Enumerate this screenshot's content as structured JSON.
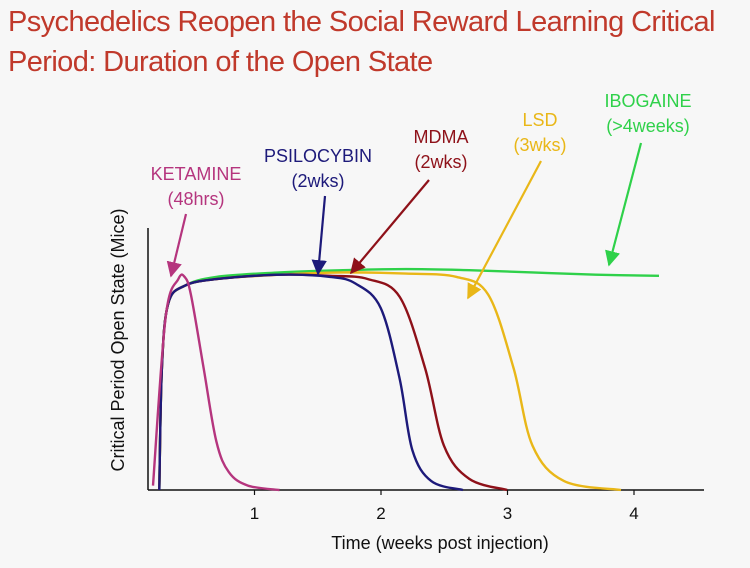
{
  "slide": {
    "title_line1": "Psychedelics Reopen the Social Reward Learning Critical",
    "title_line2": "Period: Duration of the Open State",
    "title_color": "#c0392b"
  },
  "chart_data": {
    "type": "line",
    "title": "Psychedelics Reopen the Social Reward Learning Critical Period: Duration of the Open State",
    "xlabel": "Time (weeks post injection)",
    "ylabel": "Critical Period Open State (Mice)",
    "xlim": [
      -0.7,
      4.7
    ],
    "ylim": [
      0,
      1
    ],
    "x_ticks": [
      1,
      2,
      3,
      4
    ],
    "y_ticks_shown": false,
    "grid": false,
    "series": [
      {
        "name": "KETAMINE",
        "duration_label": "(48hrs)",
        "color": "#b5357e",
        "points": [
          [
            0.0,
            0.02
          ],
          [
            0.1,
            0.78
          ],
          [
            0.2,
            0.95
          ],
          [
            0.25,
            0.96
          ],
          [
            0.3,
            0.88
          ],
          [
            0.4,
            0.55
          ],
          [
            0.5,
            0.22
          ],
          [
            0.6,
            0.08
          ],
          [
            0.75,
            0.02
          ],
          [
            1.0,
            0.0
          ]
        ]
      },
      {
        "name": "PSILOCYBIN",
        "duration_label": "(2wks)",
        "color": "#1d1a7a",
        "points": [
          [
            0.05,
            0.0
          ],
          [
            0.07,
            0.55
          ],
          [
            0.12,
            0.84
          ],
          [
            0.25,
            0.92
          ],
          [
            0.5,
            0.95
          ],
          [
            1.0,
            0.97
          ],
          [
            1.4,
            0.96
          ],
          [
            1.6,
            0.93
          ],
          [
            1.8,
            0.82
          ],
          [
            1.95,
            0.5
          ],
          [
            2.05,
            0.18
          ],
          [
            2.2,
            0.04
          ],
          [
            2.45,
            0.0
          ]
        ]
      },
      {
        "name": "MDMA",
        "duration_label": "(2wks)",
        "color": "#8e1119",
        "points": [
          [
            0.05,
            0.0
          ],
          [
            0.07,
            0.55
          ],
          [
            0.12,
            0.84
          ],
          [
            0.25,
            0.92
          ],
          [
            0.5,
            0.95
          ],
          [
            1.0,
            0.97
          ],
          [
            1.4,
            0.965
          ],
          [
            1.7,
            0.95
          ],
          [
            1.95,
            0.87
          ],
          [
            2.15,
            0.55
          ],
          [
            2.3,
            0.2
          ],
          [
            2.5,
            0.05
          ],
          [
            2.8,
            0.0
          ]
        ]
      },
      {
        "name": "LSD",
        "duration_label": "(3wks)",
        "color": "#e9b718",
        "points": [
          [
            0.05,
            0.0
          ],
          [
            0.07,
            0.55
          ],
          [
            0.12,
            0.84
          ],
          [
            0.25,
            0.92
          ],
          [
            0.5,
            0.95
          ],
          [
            1.0,
            0.97
          ],
          [
            1.5,
            0.98
          ],
          [
            2.0,
            0.975
          ],
          [
            2.4,
            0.96
          ],
          [
            2.65,
            0.88
          ],
          [
            2.85,
            0.55
          ],
          [
            3.0,
            0.2
          ],
          [
            3.25,
            0.04
          ],
          [
            3.7,
            0.0
          ]
        ]
      },
      {
        "name": "IBOGAINE",
        "duration_label": "(>4weeks)",
        "color": "#2fd14a",
        "points": [
          [
            0.05,
            0.0
          ],
          [
            0.07,
            0.55
          ],
          [
            0.12,
            0.84
          ],
          [
            0.25,
            0.92
          ],
          [
            0.5,
            0.96
          ],
          [
            1.0,
            0.98
          ],
          [
            1.5,
            0.99
          ],
          [
            2.0,
            0.995
          ],
          [
            2.5,
            0.99
          ],
          [
            3.0,
            0.98
          ],
          [
            3.5,
            0.97
          ],
          [
            4.0,
            0.965
          ]
        ]
      }
    ]
  }
}
